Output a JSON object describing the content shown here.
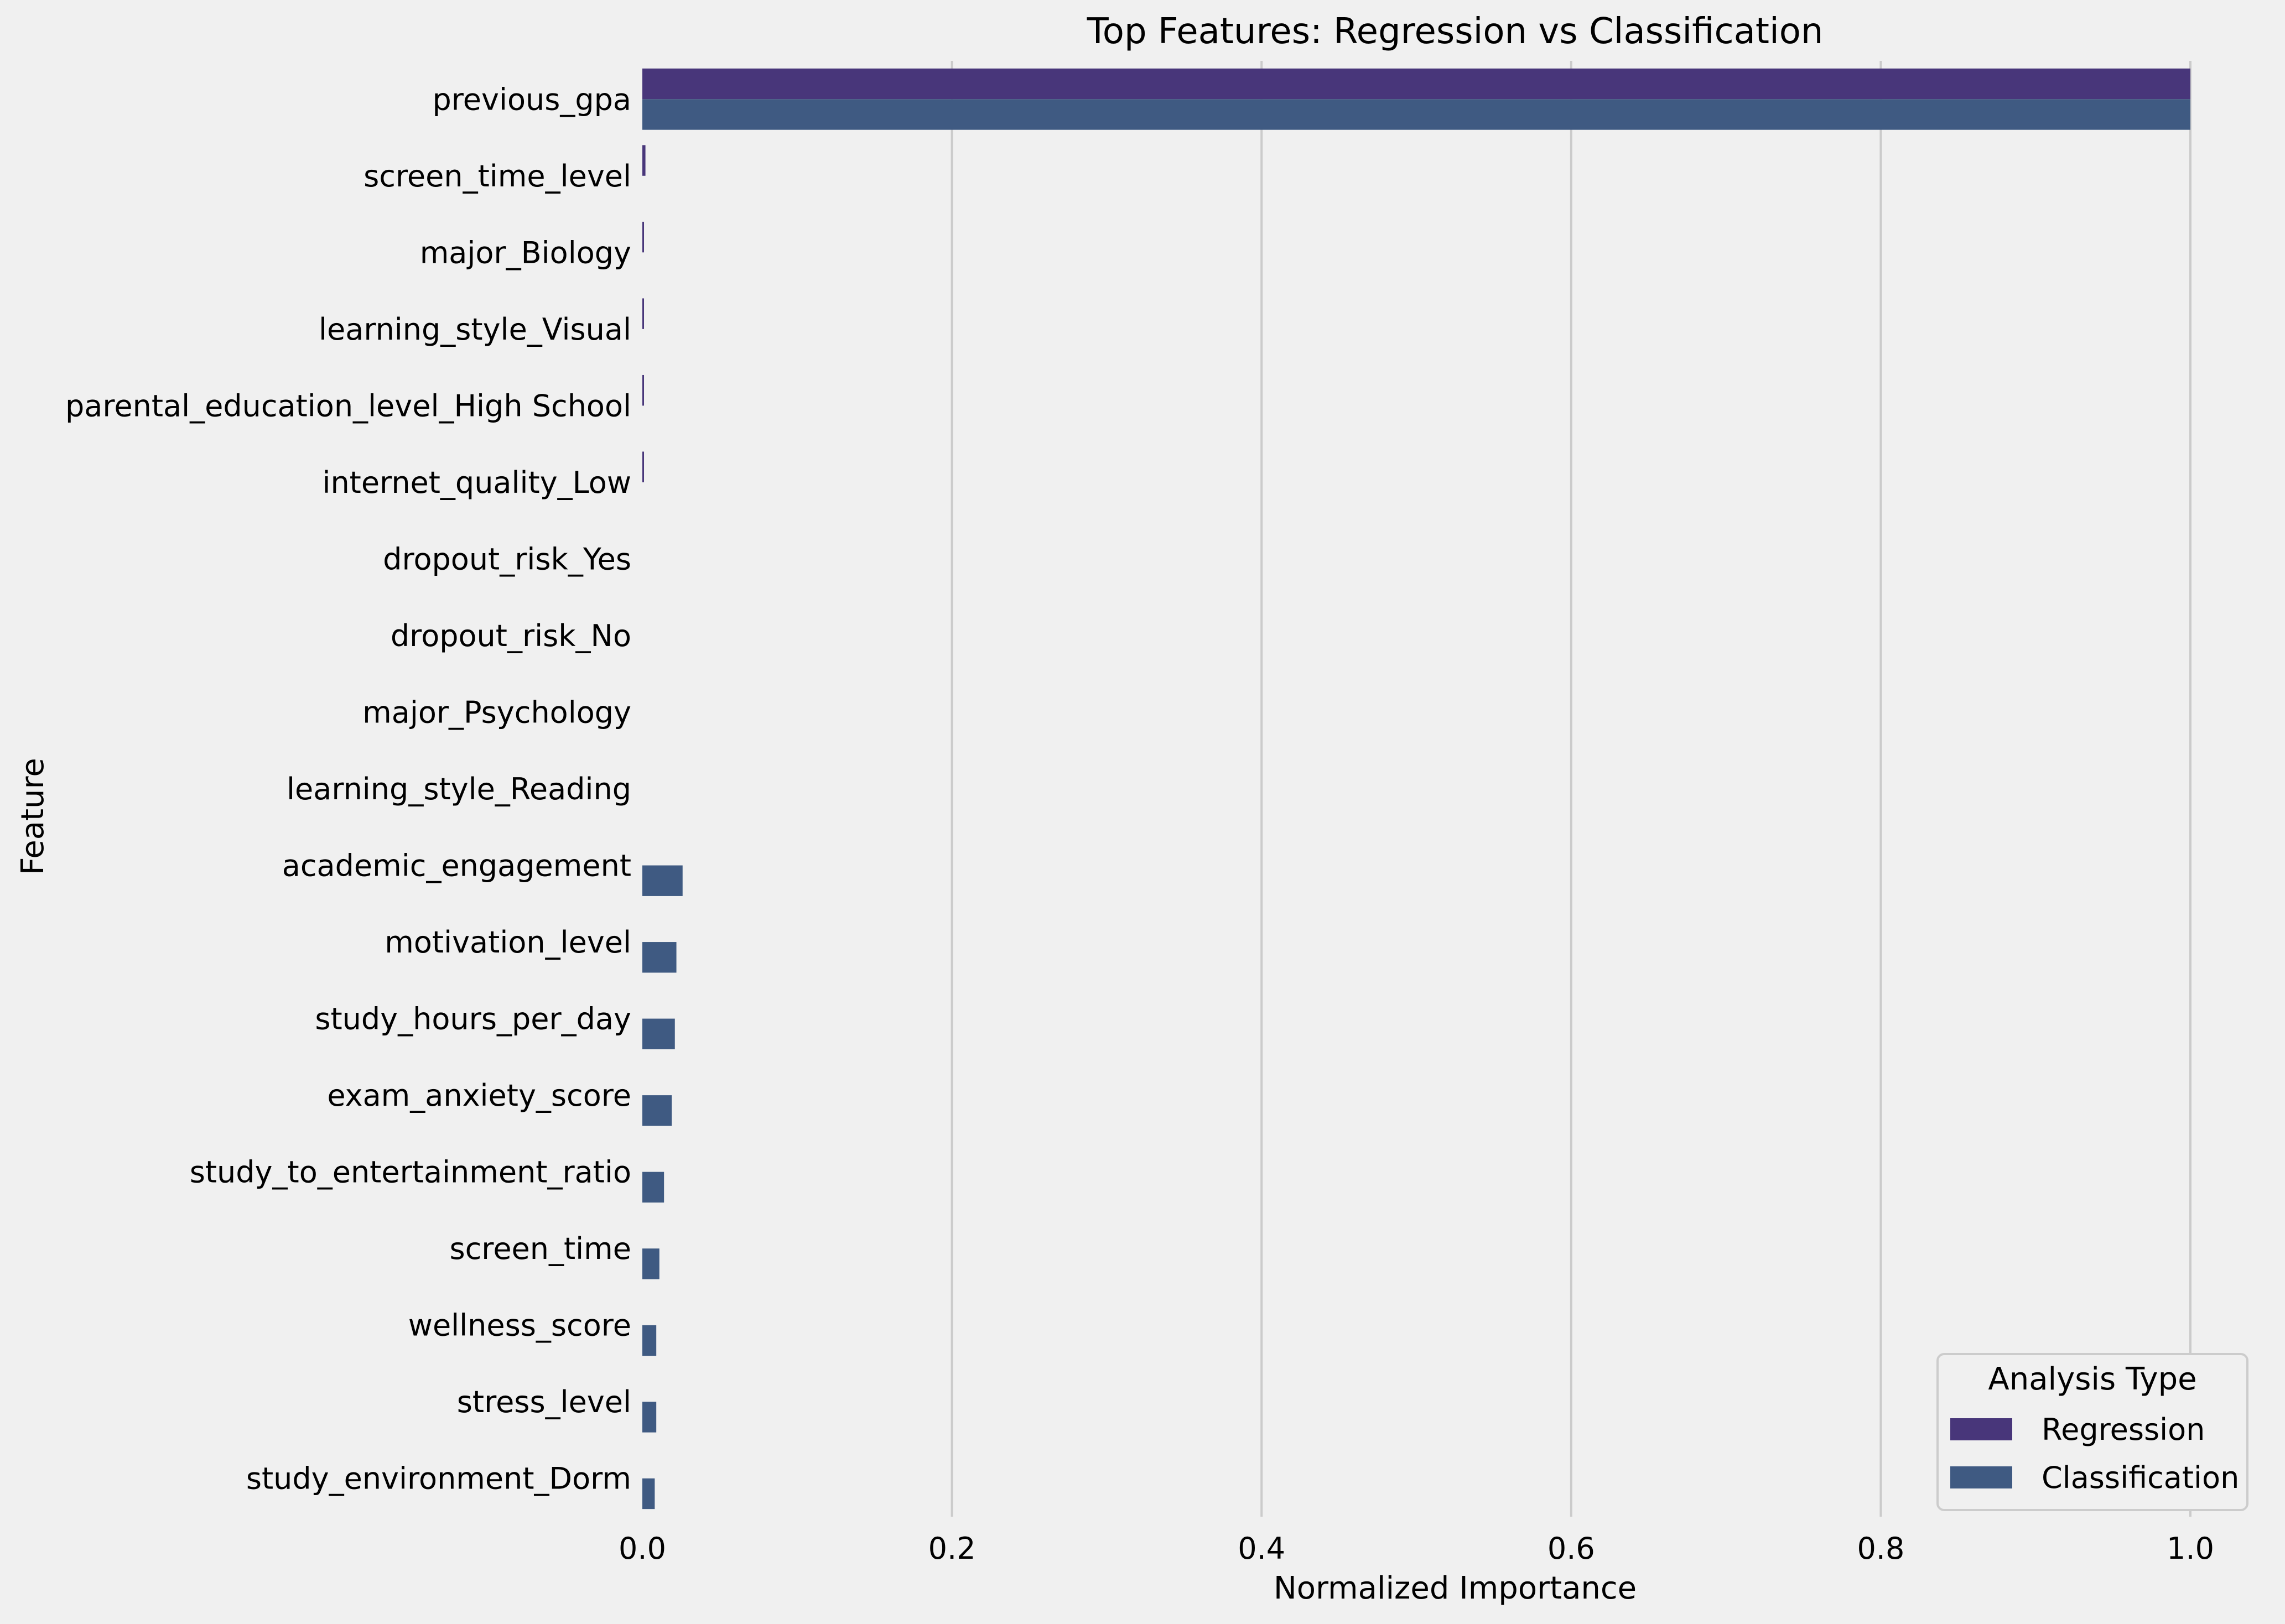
{
  "chart_data": {
    "type": "bar",
    "orientation": "horizontal",
    "title": "Top Features: Regression vs Classification",
    "xlabel": "Normalized Importance",
    "ylabel": "Feature",
    "xlim": [
      0.0,
      1.0
    ],
    "x_ticks": [
      "0.0",
      "0.2",
      "0.4",
      "0.6",
      "0.8",
      "1.0"
    ],
    "grid": "vertical",
    "categories": [
      "previous_gpa",
      "screen_time_level",
      "major_Biology",
      "learning_style_Visual",
      "parental_education_level_High School",
      "internet_quality_Low",
      "dropout_risk_Yes",
      "dropout_risk_No",
      "major_Psychology",
      "learning_style_Reading",
      "academic_engagement",
      "motivation_level",
      "study_hours_per_day",
      "exam_anxiety_score",
      "study_to_entertainment_ratio",
      "screen_time",
      "wellness_score",
      "stress_level",
      "study_environment_Dorm"
    ],
    "series": [
      {
        "name": "Regression",
        "color": "#48367a",
        "values": [
          1.0,
          0.002,
          0.001,
          0.0008,
          0.0007,
          0.0006,
          0.0,
          0.0,
          0.0,
          0.0,
          0.0,
          0.0,
          0.0,
          0.0,
          0.0,
          0.0,
          0.0,
          0.0,
          0.0
        ]
      },
      {
        "name": "Classification",
        "color": "#3f5a82",
        "values": [
          1.0,
          0.0,
          0.0,
          0.0,
          0.0,
          0.0,
          0.0,
          0.0,
          0.0,
          0.0,
          0.026,
          0.022,
          0.021,
          0.019,
          0.014,
          0.011,
          0.009,
          0.009,
          0.008
        ]
      }
    ],
    "legend": {
      "title": "Analysis Type",
      "position": "lower-right"
    }
  }
}
